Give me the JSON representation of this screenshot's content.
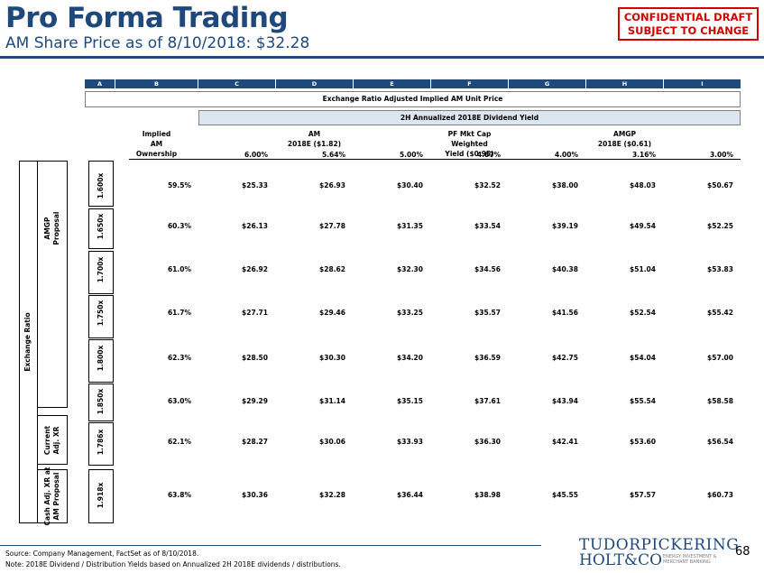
{
  "header": {
    "title": "Pro Forma Trading",
    "subtitle": "AM Share Price as of  8/10/2018: $32.28",
    "confidential_line1": "CONFIDENTIAL DRAFT",
    "confidential_line2": "SUBJECT TO CHANGE"
  },
  "table": {
    "column_letters": [
      "A",
      "B",
      "C",
      "D",
      "E",
      "F",
      "G",
      "H",
      "I"
    ],
    "banner_title": "Exchange Ratio Adjusted Implied AM Unit Price",
    "yield_banner": "2H Annualized 2018E Dividend Yield",
    "header_implied": [
      "Implied",
      "AM",
      "Ownership"
    ],
    "header_am": [
      "AM",
      "2018E ($1.82)"
    ],
    "header_pf": [
      "PF Mkt Cap Weighted",
      "Yield ($0.95)"
    ],
    "header_amgp": [
      "AMGP",
      "2018E ($0.61)"
    ],
    "yields": [
      "6.00%",
      "5.64%",
      "5.00%",
      "4.67%",
      "4.00%",
      "3.16%",
      "3.00%"
    ],
    "side_exchange_ratio": "Exchange Ratio",
    "group_amgp": [
      "AMGP",
      "Proposal"
    ],
    "group_current": [
      "Current",
      "Adj. XR"
    ],
    "group_cash": [
      "Cash Adj. XR at",
      "AM Proposal"
    ],
    "rows": [
      {
        "ratio": "1.600x",
        "ownership": "59.5%",
        "values": [
          "$25.33",
          "$26.93",
          "$30.40",
          "$32.52",
          "$38.00",
          "$48.03",
          "$50.67"
        ]
      },
      {
        "ratio": "1.650x",
        "ownership": "60.3%",
        "values": [
          "$26.13",
          "$27.78",
          "$31.35",
          "$33.54",
          "$39.19",
          "$49.54",
          "$52.25"
        ]
      },
      {
        "ratio": "1.700x",
        "ownership": "61.0%",
        "values": [
          "$26.92",
          "$28.62",
          "$32.30",
          "$34.56",
          "$40.38",
          "$51.04",
          "$53.83"
        ]
      },
      {
        "ratio": "1.750x",
        "ownership": "61.7%",
        "values": [
          "$27.71",
          "$29.46",
          "$33.25",
          "$35.57",
          "$41.56",
          "$52.54",
          "$55.42"
        ]
      },
      {
        "ratio": "1.800x",
        "ownership": "62.3%",
        "values": [
          "$28.50",
          "$30.30",
          "$34.20",
          "$36.59",
          "$42.75",
          "$54.04",
          "$57.00"
        ]
      },
      {
        "ratio": "1.850x",
        "ownership": "63.0%",
        "values": [
          "$29.29",
          "$31.14",
          "$35.15",
          "$37.61",
          "$43.94",
          "$55.54",
          "$58.58"
        ]
      },
      {
        "ratio": "1.786x",
        "ownership": "62.1%",
        "values": [
          "$28.27",
          "$30.06",
          "$33.93",
          "$36.30",
          "$42.41",
          "$53.60",
          "$56.54"
        ]
      },
      {
        "ratio": "1.918x",
        "ownership": "63.8%",
        "values": [
          "$30.36",
          "$32.28",
          "$36.44",
          "$38.98",
          "$45.55",
          "$57.57",
          "$60.73"
        ]
      }
    ]
  },
  "footer": {
    "source": "Source: Company Management, FactSet as of 8/10/2018.",
    "note": "Note: 2018E Dividend / Distribution Yields based on Annualized 2H 2018E dividends / distributions.",
    "logo_line1": "TUDORPICKERING",
    "logo_line2": "HOLT&CO",
    "logo_sub1": "ENERGY INVESTMENT &",
    "logo_sub2": "MERCHANT BANKING",
    "page_number": "68"
  }
}
